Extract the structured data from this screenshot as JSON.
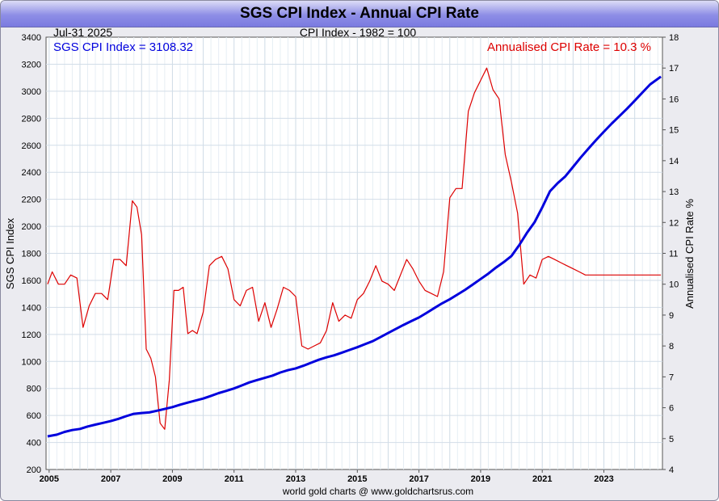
{
  "title": "SGS CPI Index - Annual CPI Rate",
  "chart_data": {
    "type": "line",
    "title": "SGS CPI Index - Annual CPI Rate",
    "date_label": "Jul-31  2025",
    "subtitle": "CPI Index - 1982 = 100",
    "footer": "world gold charts @ www.goldchartsrus.com",
    "xlabel": "",
    "ylabel_left": "SGS CPI Index",
    "ylabel_right": "Annualised CPI Rate %",
    "x_ticks": [
      "2005",
      "2007",
      "2009",
      "2011",
      "2013",
      "2015",
      "2017",
      "2019",
      "2021",
      "2023"
    ],
    "xlim": [
      2004.9,
      2024.9
    ],
    "ylim_left": [
      200,
      3400
    ],
    "yticks_left": [
      "200",
      "400",
      "600",
      "800",
      "1000",
      "1200",
      "1400",
      "1600",
      "1800",
      "2000",
      "2200",
      "2400",
      "2600",
      "2800",
      "3000",
      "3200",
      "3400"
    ],
    "ylim_right": [
      4,
      18
    ],
    "yticks_right": [
      "4",
      "5",
      "6",
      "7",
      "8",
      "9",
      "10",
      "11",
      "12",
      "13",
      "14",
      "15",
      "16",
      "17",
      "18"
    ],
    "grid": true,
    "legend": [
      {
        "text": "SGS CPI Index = 3108.32",
        "color": "#0000dd",
        "position": "top-left"
      },
      {
        "text": "Annualised CPI Rate = 10.3 %",
        "color": "#dd0000",
        "position": "top-right"
      }
    ],
    "series": [
      {
        "axis": "left",
        "color": "#0000dd",
        "x": [
          2004.95,
          2005.25,
          2005.5,
          2005.75,
          2006.0,
          2006.25,
          2006.5,
          2006.75,
          2007.0,
          2007.25,
          2007.5,
          2007.75,
          2008.0,
          2008.25,
          2008.5,
          2008.75,
          2009.0,
          2009.25,
          2009.5,
          2009.75,
          2010.0,
          2010.25,
          2010.5,
          2010.75,
          2011.0,
          2011.25,
          2011.5,
          2011.75,
          2012.0,
          2012.25,
          2012.5,
          2012.75,
          2013.0,
          2013.25,
          2013.5,
          2013.75,
          2014.0,
          2014.25,
          2014.5,
          2014.75,
          2015.0,
          2015.25,
          2015.5,
          2015.75,
          2016.0,
          2016.25,
          2016.5,
          2016.75,
          2017.0,
          2017.25,
          2017.5,
          2017.75,
          2018.0,
          2018.25,
          2018.5,
          2018.75,
          2019.0,
          2019.25,
          2019.5,
          2019.75,
          2020.0,
          2020.25,
          2020.5,
          2020.75,
          2021.0,
          2021.25,
          2021.5,
          2021.75,
          2022.0,
          2022.25,
          2022.5,
          2022.75,
          2023.0,
          2023.25,
          2023.5,
          2023.75,
          2024.0,
          2024.25,
          2024.5,
          2024.85
        ],
        "values": [
          445,
          458,
          478,
          492,
          500,
          518,
          532,
          545,
          558,
          575,
          595,
          612,
          618,
          622,
          635,
          648,
          662,
          680,
          695,
          710,
          725,
          745,
          765,
          782,
          800,
          822,
          845,
          862,
          878,
          895,
          918,
          935,
          948,
          968,
          990,
          1012,
          1030,
          1045,
          1065,
          1085,
          1105,
          1128,
          1150,
          1180,
          1210,
          1240,
          1270,
          1298,
          1325,
          1360,
          1395,
          1430,
          1460,
          1495,
          1530,
          1570,
          1610,
          1650,
          1695,
          1735,
          1780,
          1860,
          1950,
          2030,
          2140,
          2260,
          2320,
          2370,
          2440,
          2510,
          2575,
          2640,
          2700,
          2760,
          2815,
          2870,
          2930,
          2990,
          3050,
          3108
        ]
      },
      {
        "axis": "right",
        "color": "#dd0000",
        "x": [
          2004.95,
          2005.1,
          2005.3,
          2005.5,
          2005.7,
          2005.9,
          2006.1,
          2006.3,
          2006.5,
          2006.7,
          2006.9,
          2007.1,
          2007.3,
          2007.5,
          2007.7,
          2007.85,
          2008.0,
          2008.15,
          2008.3,
          2008.45,
          2008.6,
          2008.75,
          2008.9,
          2009.05,
          2009.2,
          2009.35,
          2009.5,
          2009.65,
          2009.8,
          2010.0,
          2010.2,
          2010.4,
          2010.6,
          2010.8,
          2011.0,
          2011.2,
          2011.4,
          2011.6,
          2011.8,
          2012.0,
          2012.2,
          2012.4,
          2012.6,
          2012.8,
          2013.0,
          2013.2,
          2013.4,
          2013.6,
          2013.8,
          2014.0,
          2014.2,
          2014.4,
          2014.6,
          2014.8,
          2015.0,
          2015.2,
          2015.4,
          2015.6,
          2015.8,
          2016.0,
          2016.2,
          2016.4,
          2016.6,
          2016.8,
          2017.0,
          2017.2,
          2017.4,
          2017.6,
          2017.8,
          2018.0,
          2018.2,
          2018.4,
          2018.6,
          2018.8,
          2019.0,
          2019.2,
          2019.4,
          2019.6,
          2019.8,
          2020.0,
          2020.2,
          2020.4,
          2020.6,
          2020.8,
          2021.0,
          2021.2,
          2021.4,
          2021.6,
          2021.8,
          2022.0,
          2022.2,
          2022.4,
          2022.6,
          2022.8,
          2023.0,
          2023.2,
          2023.4,
          2023.6,
          2023.8,
          2024.0,
          2024.2,
          2024.4,
          2024.6,
          2024.85
        ],
        "values": [
          10.0,
          10.4,
          10.0,
          10.0,
          10.3,
          10.2,
          8.6,
          9.3,
          9.7,
          9.7,
          9.5,
          10.8,
          10.8,
          10.6,
          12.7,
          12.5,
          11.6,
          7.9,
          7.6,
          7.0,
          5.5,
          5.3,
          6.9,
          9.8,
          9.8,
          9.9,
          8.4,
          8.5,
          8.4,
          9.1,
          10.6,
          10.8,
          10.9,
          10.5,
          9.5,
          9.3,
          9.8,
          9.9,
          8.8,
          9.4,
          8.6,
          9.2,
          9.9,
          9.8,
          9.6,
          8.0,
          7.9,
          8.0,
          8.1,
          8.5,
          9.4,
          8.8,
          9.0,
          8.9,
          9.5,
          9.7,
          10.1,
          10.6,
          10.1,
          10.0,
          9.8,
          10.3,
          10.8,
          10.5,
          10.1,
          9.8,
          9.7,
          9.6,
          10.4,
          12.8,
          13.1,
          13.1,
          15.6,
          16.2,
          16.6,
          17.0,
          16.3,
          16.0,
          14.2,
          13.3,
          12.3,
          10.0,
          10.3,
          10.2,
          10.8,
          10.9,
          10.8,
          10.7,
          10.6,
          10.5,
          10.4,
          10.3,
          10.3,
          10.3,
          10.3,
          10.3,
          10.3,
          10.3,
          10.3,
          10.3,
          10.3,
          10.3,
          10.3,
          10.3
        ]
      }
    ]
  }
}
